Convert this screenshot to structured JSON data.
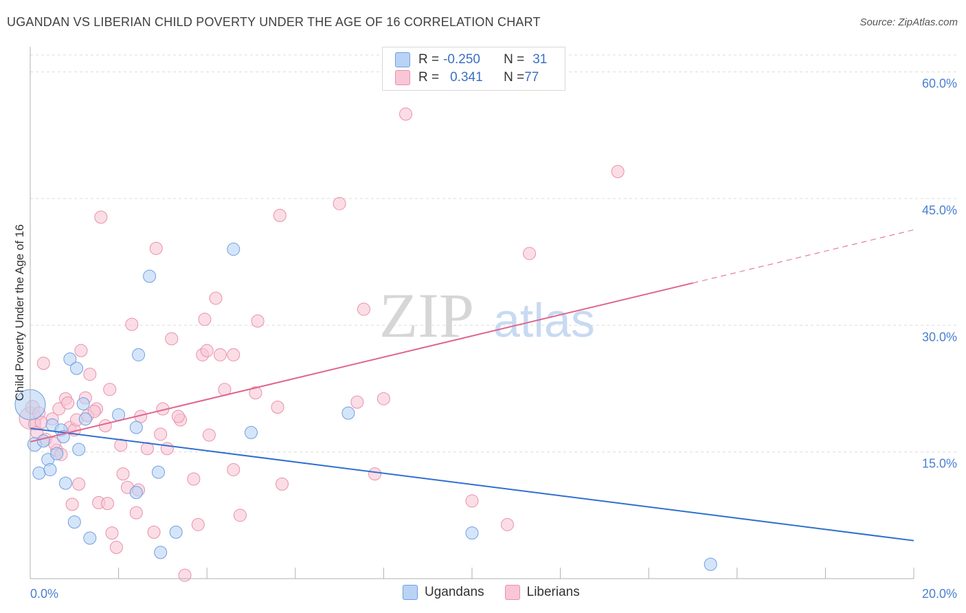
{
  "title": "UGANDAN VS LIBERIAN CHILD POVERTY UNDER THE AGE OF 16 CORRELATION CHART",
  "source": "Source: ZipAtlas.com",
  "watermark": {
    "zip": "ZIP",
    "atlas": "atlas"
  },
  "legend_top": {
    "rows": [
      {
        "r_label": "R = ",
        "r_value": "-0.250",
        "n_label": "N = ",
        "n_value": "31"
      },
      {
        "r_label": "R = ",
        "r_value": "0.341",
        "n_label": "N = ",
        "n_value": "77"
      }
    ]
  },
  "colors": {
    "ugandans_fill": "#b9d3f5",
    "ugandans_stroke": "#6e9fe0",
    "ugandans_line": "#2f6fd0",
    "liberians_fill": "#f8c6d5",
    "liberians_stroke": "#e890aa",
    "liberians_line": "#e0648c",
    "grid": "#dcdcdc",
    "tick_text": "#4a7fd0"
  },
  "chart_data": {
    "type": "scatter",
    "title": "UGANDAN VS LIBERIAN CHILD POVERTY UNDER THE AGE OF 16 CORRELATION CHART",
    "xlabel": "",
    "ylabel": "Child Poverty Under the Age of 16",
    "xlim": [
      0,
      20
    ],
    "ylim": [
      0,
      62
    ],
    "x_tick_labels": [
      "0.0%",
      "20.0%"
    ],
    "y_ticks": [
      15,
      30,
      45,
      60
    ],
    "y_tick_labels": [
      "15.0%",
      "30.0%",
      "45.0%",
      "60.0%"
    ],
    "grid": true,
    "legend_position": "bottom",
    "series": [
      {
        "name": "Ugandans",
        "r": -0.25,
        "n": 31,
        "trend": {
          "x0": 0,
          "y0": 17.8,
          "x1": 20,
          "y1": 4.5
        },
        "points": [
          [
            0.0,
            20.6,
            22
          ],
          [
            0.1,
            15.9,
            10
          ],
          [
            0.2,
            12.5,
            9
          ],
          [
            0.3,
            16.3,
            9
          ],
          [
            0.4,
            14.1,
            9
          ],
          [
            0.45,
            12.9,
            9
          ],
          [
            0.5,
            18.2,
            9
          ],
          [
            0.6,
            14.8,
            9
          ],
          [
            0.7,
            17.6,
            9
          ],
          [
            0.75,
            16.8,
            9
          ],
          [
            0.8,
            11.3,
            9
          ],
          [
            0.9,
            26.0,
            9
          ],
          [
            1.0,
            6.7,
            9
          ],
          [
            1.05,
            24.9,
            9
          ],
          [
            1.1,
            15.3,
            9
          ],
          [
            1.2,
            20.7,
            9
          ],
          [
            1.25,
            18.9,
            9
          ],
          [
            1.35,
            4.8,
            9
          ],
          [
            2.0,
            19.4,
            9
          ],
          [
            2.4,
            17.9,
            9
          ],
          [
            2.4,
            10.2,
            9
          ],
          [
            2.45,
            26.5,
            9
          ],
          [
            2.7,
            35.8,
            9
          ],
          [
            2.9,
            12.6,
            9
          ],
          [
            2.95,
            3.1,
            9
          ],
          [
            3.3,
            5.5,
            9
          ],
          [
            4.6,
            39.0,
            9
          ],
          [
            5.0,
            17.3,
            9
          ],
          [
            7.2,
            19.6,
            9
          ],
          [
            10.0,
            5.4,
            9
          ],
          [
            15.4,
            1.7,
            9
          ]
        ]
      },
      {
        "name": "Liberians",
        "r": 0.341,
        "n": 77,
        "trend": {
          "x0": 0,
          "y0": 16.2,
          "x1": 15.0,
          "y1": 35.0,
          "dash_x1": 20,
          "dash_y1": 41.3
        },
        "points": [
          [
            0.0,
            19.0,
            16
          ],
          [
            0.05,
            20.3,
            10
          ],
          [
            0.1,
            18.3,
            9
          ],
          [
            0.15,
            17.3,
            9
          ],
          [
            0.2,
            19.6,
            9
          ],
          [
            0.3,
            25.5,
            9
          ],
          [
            0.35,
            16.5,
            9
          ],
          [
            0.5,
            18.9,
            9
          ],
          [
            0.6,
            15.2,
            9
          ],
          [
            0.65,
            20.1,
            9
          ],
          [
            0.7,
            14.7,
            9
          ],
          [
            0.8,
            21.3,
            9
          ],
          [
            0.85,
            20.8,
            9
          ],
          [
            0.9,
            17.9,
            9
          ],
          [
            0.95,
            8.8,
            9
          ],
          [
            1.0,
            17.6,
            9
          ],
          [
            1.05,
            18.8,
            9
          ],
          [
            1.1,
            11.2,
            9
          ],
          [
            1.15,
            27.0,
            9
          ],
          [
            1.25,
            21.4,
            9
          ],
          [
            1.3,
            19.3,
            9
          ],
          [
            1.35,
            24.2,
            9
          ],
          [
            1.5,
            20.1,
            9
          ],
          [
            1.55,
            9.0,
            9
          ],
          [
            1.6,
            42.8,
            9
          ],
          [
            1.7,
            18.1,
            9
          ],
          [
            1.75,
            8.9,
            9
          ],
          [
            1.8,
            22.4,
            9
          ],
          [
            1.85,
            5.4,
            9
          ],
          [
            1.95,
            3.7,
            9
          ],
          [
            2.05,
            15.8,
            9
          ],
          [
            2.1,
            12.4,
            9
          ],
          [
            2.3,
            30.1,
            9
          ],
          [
            2.4,
            7.8,
            9
          ],
          [
            2.45,
            10.5,
            9
          ],
          [
            2.5,
            19.2,
            9
          ],
          [
            2.65,
            15.4,
            9
          ],
          [
            2.8,
            5.5,
            9
          ],
          [
            2.85,
            39.1,
            9
          ],
          [
            2.95,
            17.1,
            9
          ],
          [
            3.0,
            20.1,
            9
          ],
          [
            3.1,
            15.4,
            9
          ],
          [
            3.2,
            28.4,
            9
          ],
          [
            3.4,
            18.8,
            9
          ],
          [
            3.5,
            0.4,
            9
          ],
          [
            3.7,
            11.8,
            9
          ],
          [
            3.8,
            6.4,
            9
          ],
          [
            3.9,
            26.5,
            9
          ],
          [
            3.95,
            30.7,
            9
          ],
          [
            4.0,
            27.0,
            9
          ],
          [
            4.05,
            17.0,
            9
          ],
          [
            4.2,
            33.2,
            9
          ],
          [
            4.3,
            26.5,
            9
          ],
          [
            4.4,
            22.4,
            9
          ],
          [
            4.6,
            12.9,
            9
          ],
          [
            4.6,
            26.5,
            9
          ],
          [
            4.75,
            7.5,
            9
          ],
          [
            5.1,
            22.0,
            9
          ],
          [
            5.15,
            30.5,
            9
          ],
          [
            5.6,
            20.3,
            9
          ],
          [
            5.65,
            43.0,
            9
          ],
          [
            5.7,
            11.2,
            9
          ],
          [
            7.0,
            44.4,
            9
          ],
          [
            7.4,
            20.9,
            9
          ],
          [
            7.55,
            31.9,
            9
          ],
          [
            7.8,
            12.4,
            9
          ],
          [
            8.0,
            21.3,
            9
          ],
          [
            8.5,
            55.0,
            9
          ],
          [
            10.0,
            9.2,
            9
          ],
          [
            10.8,
            6.4,
            9
          ],
          [
            11.3,
            38.5,
            9
          ],
          [
            13.3,
            48.2,
            9
          ],
          [
            0.25,
            18.5,
            9
          ],
          [
            0.55,
            16.0,
            9
          ],
          [
            1.45,
            19.8,
            9
          ],
          [
            2.2,
            10.8,
            9
          ],
          [
            3.35,
            19.2,
            9
          ]
        ]
      }
    ]
  },
  "bottom_legend": {
    "ugandans": "Ugandans",
    "liberians": "Liberians"
  }
}
